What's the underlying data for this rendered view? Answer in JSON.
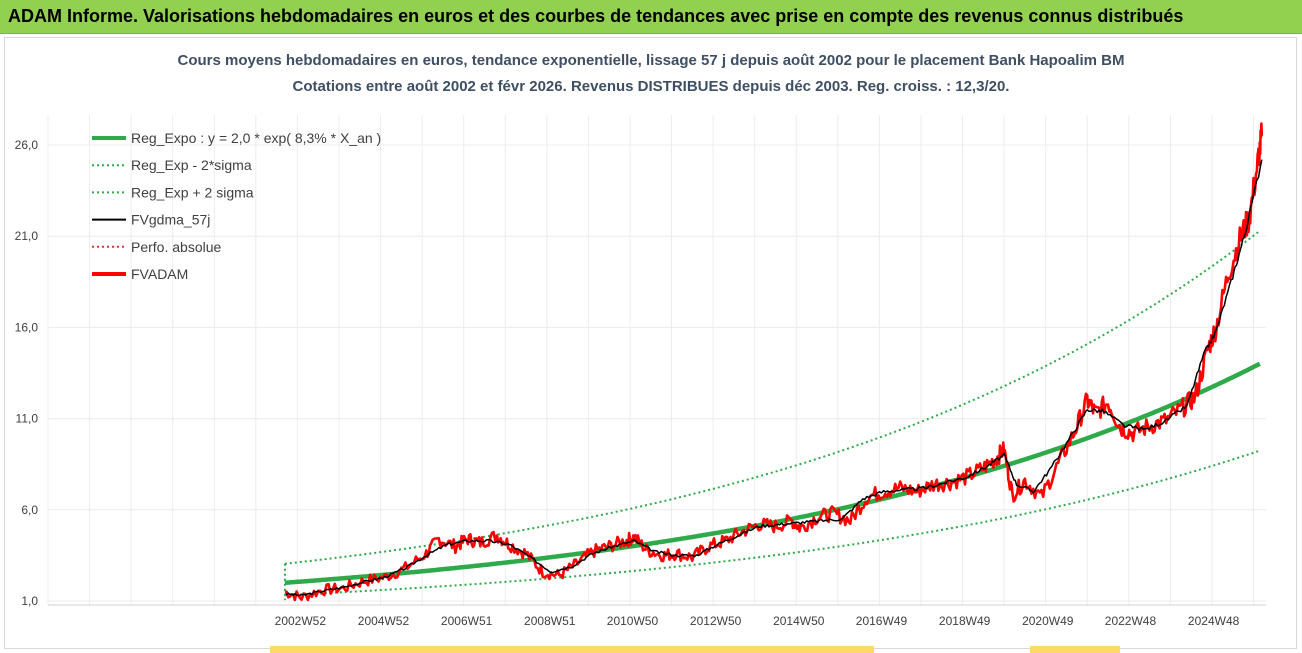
{
  "banner": {
    "title": "ADAM Informe. Valorisations hebdomadaires en euros et des courbes de tendances avec prise en compte des revenus connus distribués"
  },
  "chart_data": {
    "type": "line",
    "title": "Cours moyens hebdomadaires en euros, tendance exponentielle, lissage 57 j depuis août 2002 pour le placement Bank Hapoalim BM",
    "subtitle": "Cotations entre août 2002 et févr 2026. Revenus DISTRIBUES depuis déc 2003. Reg. croiss. : 12,3/20.",
    "y_ticks": [
      "1,0",
      "6,0",
      "11,0",
      "16,0",
      "21,0",
      "26,0"
    ],
    "y_tick_values": [
      1,
      6,
      11,
      16,
      21,
      26
    ],
    "ylim": [
      1,
      26
    ],
    "x_ticks": [
      "2002W52",
      "2004W52",
      "2006W51",
      "2008W51",
      "2010W50",
      "2012W50",
      "2014W50",
      "2016W49",
      "2018W49",
      "2020W49",
      "2022W48",
      "2024W48"
    ],
    "x_tick_values": [
      2002.97,
      2004.97,
      2006.97,
      2008.97,
      2010.96,
      2012.96,
      2014.96,
      2016.95,
      2018.95,
      2020.95,
      2022.94,
      2024.94
    ],
    "xlim": [
      1996.9,
      2026.2
    ],
    "data_start": 2002.6,
    "grid": true,
    "legend_position": "top-left",
    "legend": [
      {
        "name": "Reg_Expo : y = 2,0 * exp( 8,3% *  X_an )",
        "color": "#2eaa4a",
        "style": "solid-thick"
      },
      {
        "name": "Reg_Exp - 2*sigma",
        "color": "#2eaa4a",
        "style": "dotted"
      },
      {
        "name": "Reg_Exp + 2 sigma",
        "color": "#2eaa4a",
        "style": "dotted"
      },
      {
        "name": "FVgdma_57j",
        "color": "#000000",
        "style": "solid"
      },
      {
        "name": "Perfo. absolue",
        "color": "#e03030",
        "style": "dotted"
      },
      {
        "name": "FVADAM",
        "color": "#ff0000",
        "style": "solid-thick"
      }
    ],
    "regression": {
      "a": 2.0,
      "rate": 0.083,
      "t0": 2002.6,
      "lower_factor": 0.66,
      "upper_factor": 1.52
    },
    "series": [
      {
        "name": "FVADAM",
        "x": [
          2002.6,
          2003.0,
          2003.5,
          2004.0,
          2004.5,
          2005.0,
          2005.5,
          2006.0,
          2006.3,
          2006.7,
          2007.0,
          2007.3,
          2007.7,
          2008.0,
          2008.4,
          2008.8,
          2009.2,
          2009.6,
          2010.0,
          2010.4,
          2010.8,
          2011.0,
          2011.3,
          2011.7,
          2012.0,
          2012.4,
          2012.8,
          2013.2,
          2013.6,
          2014.0,
          2014.4,
          2014.8,
          2015.0,
          2015.4,
          2015.8,
          2016.2,
          2016.6,
          2017.0,
          2017.4,
          2017.8,
          2018.2,
          2018.6,
          2019.0,
          2019.4,
          2019.7,
          2019.9,
          2020.1,
          2020.4,
          2020.8,
          2021.2,
          2021.6,
          2021.9,
          2022.1,
          2022.4,
          2022.7,
          2023.0,
          2023.4,
          2023.8,
          2024.2,
          2024.5,
          2024.8,
          2025.0,
          2025.3,
          2025.6,
          2025.8,
          2026.0,
          2026.1
        ],
        "values": [
          1.5,
          1.2,
          1.6,
          1.7,
          2.1,
          2.3,
          2.8,
          3.6,
          4.4,
          4.0,
          4.4,
          4.2,
          4.6,
          4.1,
          3.6,
          2.6,
          2.4,
          3.0,
          3.7,
          4.0,
          4.3,
          4.5,
          3.8,
          3.5,
          3.6,
          3.4,
          4.0,
          4.3,
          4.8,
          5.2,
          5.1,
          5.4,
          5.0,
          5.6,
          5.8,
          5.4,
          6.7,
          7.0,
          7.2,
          7.0,
          7.4,
          7.5,
          7.8,
          8.3,
          8.8,
          9.3,
          6.8,
          7.6,
          6.7,
          8.5,
          10.3,
          12.0,
          11.3,
          11.9,
          10.5,
          10.2,
          10.6,
          10.9,
          11.6,
          12.2,
          14.8,
          16.0,
          19.0,
          21.0,
          22.0,
          25.0,
          26.5
        ]
      },
      {
        "name": "FVgdma_57j",
        "x": [
          2002.6,
          2003.0,
          2003.5,
          2004.0,
          2004.5,
          2005.0,
          2005.5,
          2006.0,
          2006.5,
          2007.0,
          2007.5,
          2008.0,
          2008.5,
          2009.0,
          2009.5,
          2010.0,
          2010.5,
          2011.0,
          2011.5,
          2012.0,
          2012.5,
          2013.0,
          2013.5,
          2014.0,
          2014.5,
          2015.0,
          2015.5,
          2016.0,
          2016.5,
          2017.0,
          2017.5,
          2018.0,
          2018.5,
          2019.0,
          2019.5,
          2019.9,
          2020.2,
          2020.6,
          2021.0,
          2021.5,
          2021.9,
          2022.3,
          2022.8,
          2023.3,
          2023.8,
          2024.3,
          2024.7,
          2025.0,
          2025.4,
          2025.7,
          2026.1
        ],
        "values": [
          1.4,
          1.3,
          1.55,
          1.75,
          2.05,
          2.3,
          2.8,
          3.5,
          4.1,
          4.3,
          4.3,
          4.1,
          3.4,
          2.6,
          2.9,
          3.6,
          4.0,
          4.3,
          3.7,
          3.5,
          3.5,
          4.1,
          4.6,
          5.1,
          5.2,
          5.3,
          5.4,
          5.5,
          6.6,
          7.0,
          7.1,
          7.2,
          7.5,
          7.8,
          8.4,
          9.0,
          7.4,
          7.0,
          8.2,
          10.0,
          11.5,
          11.4,
          10.6,
          10.4,
          10.9,
          11.7,
          14.5,
          15.8,
          18.8,
          21.2,
          25.2
        ]
      }
    ]
  }
}
